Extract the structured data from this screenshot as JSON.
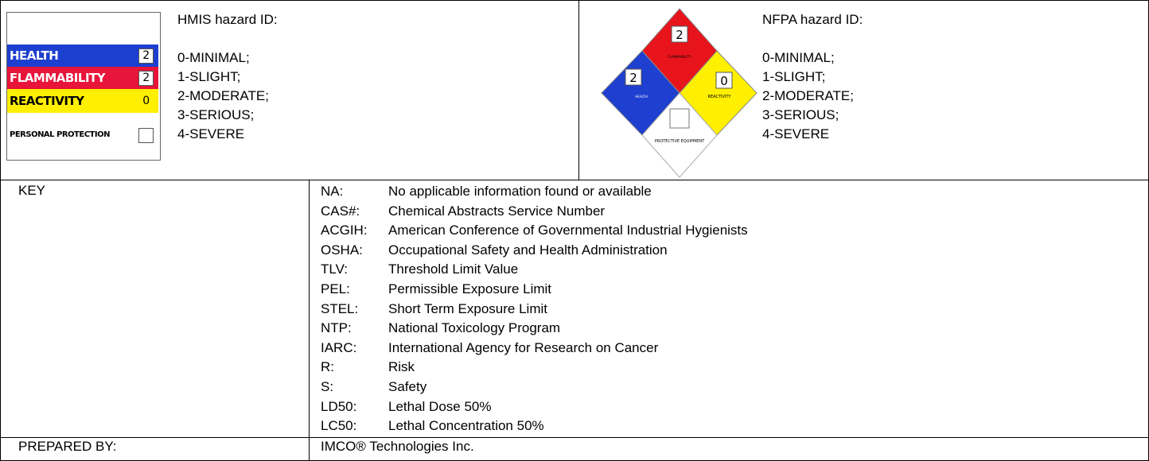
{
  "hmis": {
    "title": "HMIS hazard ID:",
    "label": {
      "rows": [
        {
          "name": "HEALTH",
          "rating": "2"
        },
        {
          "name": "FLAMMABILITY",
          "rating": "2"
        },
        {
          "name": "REACTIVITY",
          "rating": "0"
        },
        {
          "name": "PERSONAL PROTECTION"
        }
      ]
    },
    "scale": [
      "0-MINIMAL;",
      "1-SLIGHT;",
      "2-MODERATE;",
      "3-SERIOUS;",
      "4-SEVERE"
    ]
  },
  "nfpa": {
    "title": "NFPA hazard ID:",
    "diamond": {
      "flammability": {
        "name": "FLAMMABILITY",
        "rating": "2"
      },
      "health": {
        "name": "HEALTH",
        "rating": "2"
      },
      "reactivity": {
        "name": "REACTIVITY",
        "rating": "0"
      },
      "special": {
        "name": "PROTECTIVE EQUIPMENT"
      }
    },
    "scale": [
      "0-MINIMAL;",
      "1-SLIGHT;",
      "2-MODERATE;",
      "3-SERIOUS;",
      "4-SEVERE"
    ]
  },
  "key": {
    "label": "KEY",
    "entries": [
      {
        "abbr": "NA:",
        "meaning": "No applicable information found or available"
      },
      {
        "abbr": "CAS#:",
        "meaning": "Chemical Abstracts Service Number"
      },
      {
        "abbr": "ACGIH:",
        "meaning": "American Conference of Governmental Industrial Hygienists"
      },
      {
        "abbr": "OSHA:",
        "meaning": "Occupational Safety and Health Administration"
      },
      {
        "abbr": "TLV:",
        "meaning": "Threshold Limit Value"
      },
      {
        "abbr": "PEL:",
        "meaning": "Permissible Exposure Limit"
      },
      {
        "abbr": "STEL:",
        "meaning": "Short Term Exposure Limit"
      },
      {
        "abbr": "NTP:",
        "meaning": "National Toxicology Program"
      },
      {
        "abbr": "IARC:",
        "meaning": "International Agency for Research on Cancer"
      },
      {
        "abbr": "R:",
        "meaning": "Risk"
      },
      {
        "abbr": "S:",
        "meaning": "Safety"
      },
      {
        "abbr": "LD50:",
        "meaning": "Lethal Dose 50%"
      },
      {
        "abbr": "LC50:",
        "meaning": "Lethal Concentration 50%"
      }
    ]
  },
  "prepared_by": {
    "label": "PREPARED BY:",
    "value": "IMCO® Technologies Inc."
  }
}
